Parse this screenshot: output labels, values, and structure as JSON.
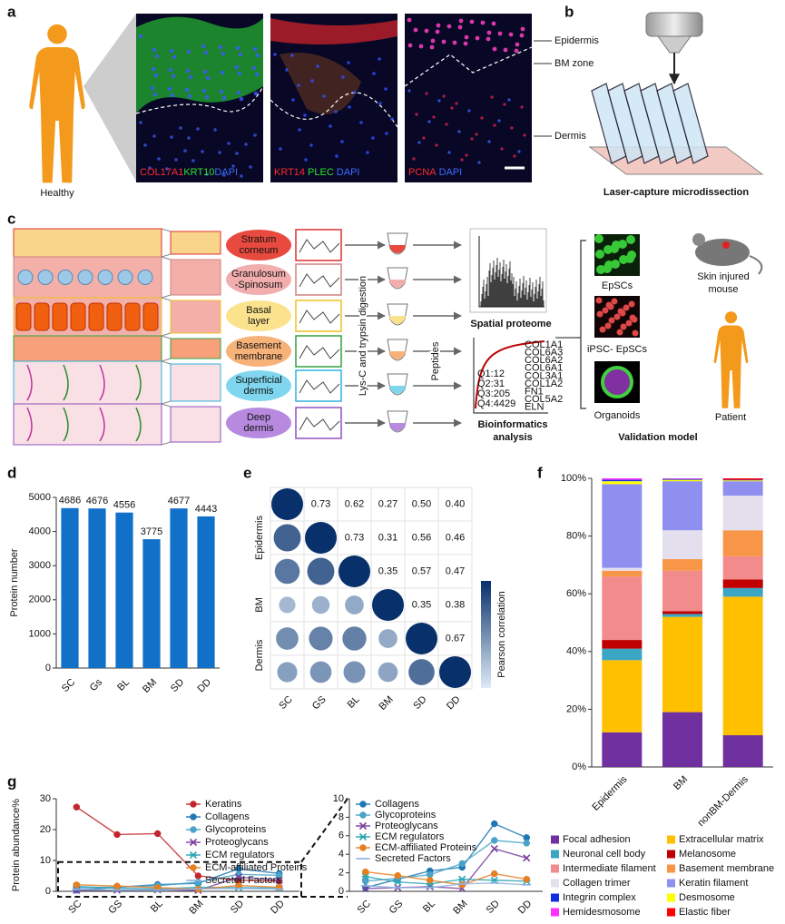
{
  "figure": {
    "panel_labels": [
      "a",
      "b",
      "c",
      "d",
      "e",
      "f",
      "g"
    ],
    "a": {
      "subject": "Healthy",
      "stains": [
        {
          "texts": [
            "COL17A1",
            "KRT10",
            "DAPI"
          ],
          "colors": [
            "#ff2a2a",
            "#2ee02e",
            "#3d6bff"
          ]
        },
        {
          "texts": [
            "KRT14",
            "PLEC",
            "DAPI"
          ],
          "colors": [
            "#ff2a2a",
            "#2ee02e",
            "#3d6bff"
          ]
        },
        {
          "texts": [
            "PCNA",
            "DAPI"
          ],
          "colors": [
            "#ff2a2a",
            "#3d6bff"
          ]
        }
      ],
      "zones": [
        "Epidermis",
        "BM zone",
        "Dermis"
      ]
    },
    "b": {
      "caption": "Laser-capture microdissection"
    },
    "c": {
      "layers": [
        {
          "name": [
            "Stratum",
            "corneum"
          ],
          "color": "#e84a3f"
        },
        {
          "name": [
            "Granulosum",
            "-Spinosum"
          ],
          "color": "#f2aeae"
        },
        {
          "name": [
            "Basal",
            "layer"
          ],
          "color": "#fbe38e"
        },
        {
          "name": [
            "Basement",
            "membrane"
          ],
          "color": "#f7b27a"
        },
        {
          "name": [
            "Superficial",
            "dermis"
          ],
          "color": "#7fd6ee"
        },
        {
          "name": [
            "Deep",
            "dermis"
          ],
          "color": "#b78ae0"
        }
      ],
      "digestion": "Lys-C and trypsin digestion",
      "peptides": "Peptides",
      "spatial": "Spatial proteome",
      "bioinfo": [
        "Bioinformatics",
        "analysis"
      ],
      "quartiles": [
        "Q1:12",
        "Q2:31",
        "Q3:205",
        "Q4:4429"
      ],
      "quartile_colors": [
        "#7030a0",
        "#1a9aa0",
        "#e0a800",
        "#c00000"
      ],
      "genes": [
        "COL1A1",
        "COL6A3",
        "COL6A2",
        "COL6A1",
        "COL3A1",
        "COL1A2",
        "FN1",
        "COL5A2",
        "ELN"
      ],
      "gene_colors": [
        "#7030a0",
        "#1a9aa0",
        "#1a9aa0",
        "#1a9aa0",
        "#d4b000",
        "#d4b000",
        "#c00000",
        "#c00000",
        "#c00000"
      ],
      "validation": {
        "epscs": "EpSCs",
        "ipsc": "iPSC- EpSCs",
        "organoids": "Organoids",
        "mouse": [
          "Skin injured",
          "mouse"
        ],
        "patient": "Patient",
        "title": "Validation model"
      }
    }
  },
  "chart_data": [
    {
      "type": "bar",
      "ylabel": "Protein number",
      "categories": [
        "SC",
        "Gs",
        "BL",
        "BM",
        "SD",
        "DD"
      ],
      "values": [
        4686,
        4676,
        4556,
        3775,
        4677,
        4443
      ],
      "color": "#1170c8",
      "ylim": [
        0,
        5000
      ],
      "yticks": [
        0,
        1000,
        2000,
        3000,
        4000,
        5000
      ]
    },
    {
      "type": "correlation",
      "categories": [
        "SC",
        "GS",
        "BL",
        "BM",
        "SD",
        "DD"
      ],
      "row_groups": [
        "Epidermis",
        "BM",
        "Dermis"
      ],
      "diagonal": [
        1,
        1,
        1,
        1,
        1,
        1
      ],
      "upper": [
        [
          0.73,
          0.62,
          0.27,
          0.5,
          0.4
        ],
        [
          0.73,
          0.31,
          0.56,
          0.46
        ],
        [
          0.35,
          0.57,
          0.47
        ],
        [
          0.35,
          0.38
        ],
        [
          0.67
        ]
      ],
      "value_labels": [
        [
          "0.73",
          "0.62",
          "0.27",
          "0.50",
          "0.40"
        ],
        [
          "0.73",
          "0.31",
          "0.56",
          "0.46"
        ],
        [
          "0.35",
          "0.57",
          "0.47"
        ],
        [
          "0.35",
          "0.38"
        ],
        [
          "0.67"
        ]
      ],
      "colorbar_label": "Pearson correlation",
      "color_low": "#deebf7",
      "color_high": "#08306b"
    },
    {
      "type": "stacked_bar",
      "categories": [
        "Epidermis",
        "BM",
        "nonBM-Dermis"
      ],
      "ylim": [
        0,
        100
      ],
      "yticks": [
        {
          "value": 0,
          "label": "0%"
        },
        {
          "value": 20,
          "label": "20%"
        },
        {
          "value": 40,
          "label": "40%"
        },
        {
          "value": 60,
          "label": "60%"
        },
        {
          "value": 80,
          "label": "80%"
        },
        {
          "value": 100,
          "label": "100%"
        }
      ],
      "series": [
        {
          "name": "Focal adhesion",
          "color": "#7030a0",
          "values": [
            12,
            19,
            11
          ]
        },
        {
          "name": "Neuronal cell body",
          "color": "#3aa6c4",
          "values": [
            4,
            1,
            3
          ]
        },
        {
          "name": "Intermediate filament",
          "color": "#f28b8b",
          "values": [
            22,
            14,
            8
          ]
        },
        {
          "name": "Collagen trimer",
          "color": "#e4dfec",
          "values": [
            1,
            10,
            12
          ]
        },
        {
          "name": "Integrin complex",
          "color": "#1030e0",
          "values": [
            0.5,
            0.3,
            0.2
          ]
        },
        {
          "name": "Hemidesmosome",
          "color": "#ff30ff",
          "values": [
            0.5,
            0.2,
            0
          ]
        },
        {
          "name": "Extracellular matrix",
          "color": "#ffc000",
          "values": [
            25,
            33,
            48
          ]
        },
        {
          "name": "Melanosome",
          "color": "#c00000",
          "values": [
            3,
            1,
            3
          ]
        },
        {
          "name": "Basement membrane",
          "color": "#f79646",
          "values": [
            2,
            4,
            9
          ]
        },
        {
          "name": "Keratin filament",
          "color": "#8f8ff0",
          "values": [
            29,
            17,
            5
          ]
        },
        {
          "name": "Desmosome",
          "color": "#ffff00",
          "values": [
            1,
            0.5,
            0.3
          ]
        },
        {
          "name": "Elastic fiber",
          "color": "#ff0000",
          "values": [
            0,
            0,
            0.5
          ]
        }
      ]
    },
    {
      "type": "line",
      "ylabel": "Protein abundance%",
      "categories": [
        "SC",
        "GS",
        "BL",
        "BM",
        "SD",
        "DD"
      ],
      "ylim": [
        0,
        30
      ],
      "yticks": [
        0,
        10,
        20,
        30
      ],
      "series": [
        {
          "name": "Keratins",
          "color": "#c1272d",
          "marker": "circle",
          "values": [
            27.3,
            18.4,
            18.7,
            5.0,
            3.6,
            3.3
          ]
        },
        {
          "name": "Collagens",
          "color": "#1f77b4",
          "marker": "circle",
          "values": [
            0.4,
            1.3,
            2.2,
            2.6,
            7.3,
            5.8
          ]
        },
        {
          "name": "Glycoproteins",
          "color": "#4aa3c9",
          "marker": "circle",
          "values": [
            1.1,
            1.4,
            1.8,
            3.0,
            5.5,
            5.2
          ]
        },
        {
          "name": "Proteoglycans",
          "color": "#7b3f9e",
          "marker": "x",
          "values": [
            0.3,
            0.4,
            0.5,
            0.3,
            4.6,
            3.6
          ]
        },
        {
          "name": "ECM regulators",
          "color": "#2ca5b5",
          "marker": "star",
          "values": [
            1.6,
            1.0,
            0.8,
            1.3,
            1.2,
            1.1
          ]
        },
        {
          "name": "ECM-affiliated Proteins",
          "color": "#e67e22",
          "marker": "circle",
          "values": [
            2.1,
            1.7,
            1.2,
            0.7,
            1.9,
            1.3
          ]
        },
        {
          "name": "Secreted Factors",
          "color": "#8fb4e3",
          "marker": "dash",
          "values": [
            0.6,
            0.4,
            0.4,
            0.8,
            0.9,
            0.7
          ]
        }
      ]
    },
    {
      "type": "line",
      "categories": [
        "SC",
        "GS",
        "BL",
        "BM",
        "SD",
        "DD"
      ],
      "ylim": [
        0,
        10
      ],
      "yticks": [
        0,
        2,
        4,
        6,
        8,
        10
      ],
      "series": [
        {
          "name": "Collagens",
          "color": "#1f77b4",
          "marker": "circle",
          "values": [
            0.4,
            1.3,
            2.2,
            2.6,
            7.3,
            5.8
          ]
        },
        {
          "name": "Glycoproteins",
          "color": "#4aa3c9",
          "marker": "circle",
          "values": [
            1.1,
            1.4,
            1.8,
            3.0,
            5.5,
            5.2
          ]
        },
        {
          "name": "Proteoglycans",
          "color": "#7b3f9e",
          "marker": "x",
          "values": [
            0.3,
            0.4,
            0.5,
            0.3,
            4.6,
            3.6
          ]
        },
        {
          "name": "ECM regulators",
          "color": "#2ca5b5",
          "marker": "star",
          "values": [
            1.6,
            1.0,
            0.8,
            1.3,
            1.2,
            1.1
          ]
        },
        {
          "name": "ECM-affiliated Proteins",
          "color": "#e67e22",
          "marker": "circle",
          "values": [
            2.1,
            1.7,
            1.2,
            0.7,
            1.9,
            1.3
          ]
        },
        {
          "name": "Secreted Factors",
          "color": "#8fb4e3",
          "marker": "dash",
          "values": [
            0.6,
            0.4,
            0.4,
            0.8,
            0.9,
            0.7
          ]
        }
      ]
    }
  ]
}
